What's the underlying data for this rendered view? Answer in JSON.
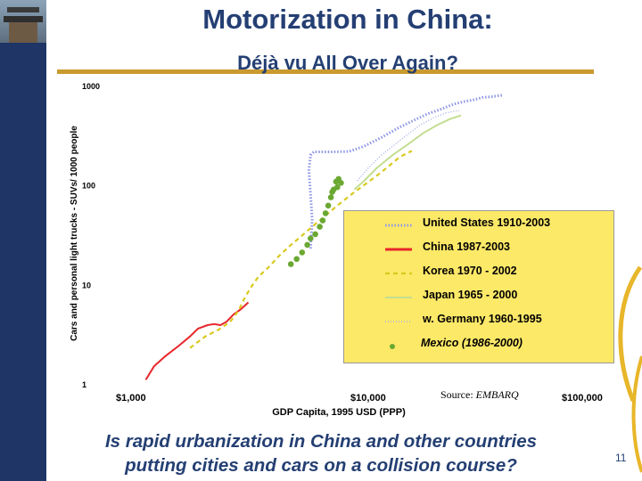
{
  "slide": {
    "title": "Motorization in China:",
    "subtitle": "Déjà vu All Over Again?",
    "question_line1": "Is rapid urbanization in China and other countries",
    "question_line2": "putting cities and cars on a collision course?",
    "page_number": "11",
    "source_label": "Source: ",
    "source_name": "EMBARQ"
  },
  "colors": {
    "sidebar": "#1e3566",
    "title": "#243f73",
    "rule": "#c99a2e",
    "legend_bg": "#fde968"
  },
  "chart_data": {
    "type": "line",
    "xlabel": "GDP Capita, 1995 USD (PPP)",
    "ylabel": "Cars and personal light trucks - SUVs/ 1000 people",
    "x_scale": "log",
    "y_scale": "log",
    "xlim": [
      1000,
      100000
    ],
    "ylim": [
      1,
      1000
    ],
    "x_ticks": [
      {
        "value": 1000,
        "label": "$1,000"
      },
      {
        "value": 10000,
        "label": "$10,000"
      },
      {
        "value": 100000,
        "label": "$100,000"
      }
    ],
    "y_ticks": [
      {
        "value": 1,
        "label": "1"
      },
      {
        "value": 10,
        "label": "10"
      },
      {
        "value": 100,
        "label": "100"
      },
      {
        "value": 1000,
        "label": "1000"
      }
    ],
    "legend_position": "lower-right",
    "series": [
      {
        "name": "United States 1910-2003",
        "color": "#8f96e6",
        "style": "dotted-thick",
        "points": [
          [
            6100,
            23
          ],
          [
            6200,
            45
          ],
          [
            6100,
            80
          ],
          [
            6000,
            140
          ],
          [
            6100,
            200
          ],
          [
            6300,
            215
          ],
          [
            7500,
            215
          ],
          [
            9000,
            217
          ],
          [
            10500,
            245
          ],
          [
            12500,
            300
          ],
          [
            15000,
            380
          ],
          [
            17500,
            450
          ],
          [
            20000,
            520
          ],
          [
            23000,
            580
          ],
          [
            26000,
            650
          ],
          [
            29000,
            690
          ],
          [
            32000,
            720
          ],
          [
            35000,
            760
          ],
          [
            38000,
            770
          ],
          [
            41000,
            790
          ],
          [
            43000,
            800
          ]
        ]
      },
      {
        "name": "China 1987-2003",
        "color": "#e8262a",
        "style": "solid",
        "points": [
          [
            1150,
            1.1
          ],
          [
            1250,
            1.5
          ],
          [
            1400,
            1.9
          ],
          [
            1600,
            2.4
          ],
          [
            1800,
            3.0
          ],
          [
            1950,
            3.6
          ],
          [
            2150,
            3.9
          ],
          [
            2300,
            4.0
          ],
          [
            2450,
            3.9
          ],
          [
            2600,
            4.2
          ],
          [
            2800,
            5.0
          ],
          [
            3000,
            5.6
          ],
          [
            3250,
            6.6
          ]
        ]
      },
      {
        "name": "Korea 1970 - 2002",
        "color": "#d9c91f",
        "style": "dashed",
        "points": [
          [
            1800,
            2.3
          ],
          [
            2100,
            3.0
          ],
          [
            2400,
            3.5
          ],
          [
            2700,
            4.2
          ],
          [
            2950,
            5.5
          ],
          [
            3100,
            7
          ],
          [
            3300,
            9
          ],
          [
            3600,
            12
          ],
          [
            4000,
            15
          ],
          [
            4400,
            19
          ],
          [
            4900,
            24
          ],
          [
            5500,
            30
          ],
          [
            6200,
            38
          ],
          [
            7000,
            48
          ],
          [
            8000,
            62
          ],
          [
            9200,
            80
          ],
          [
            10500,
            100
          ],
          [
            12000,
            125
          ],
          [
            13500,
            155
          ],
          [
            15000,
            190
          ],
          [
            17000,
            220
          ]
        ]
      },
      {
        "name": "Japan 1965 - 2000",
        "color": "#c3de91",
        "style": "solid",
        "points": [
          [
            9500,
            90
          ],
          [
            10500,
            110
          ],
          [
            12000,
            150
          ],
          [
            14000,
            200
          ],
          [
            16500,
            260
          ],
          [
            19000,
            330
          ],
          [
            22000,
            400
          ],
          [
            25000,
            460
          ],
          [
            28000,
            500
          ]
        ]
      },
      {
        "name": "w. Germany 1960-1995",
        "color": "#aab2e8",
        "style": "dotted",
        "points": [
          [
            9800,
            110
          ],
          [
            11000,
            150
          ],
          [
            12500,
            200
          ],
          [
            14500,
            260
          ],
          [
            16500,
            330
          ],
          [
            18500,
            400
          ],
          [
            21000,
            470
          ],
          [
            24000,
            530
          ],
          [
            27500,
            560
          ]
        ]
      },
      {
        "name": "Mexico (1986-2000)",
        "color": "#6aa832",
        "style": "markers",
        "points": [
          [
            5000,
            16
          ],
          [
            5300,
            18
          ],
          [
            5600,
            21
          ],
          [
            5900,
            25
          ],
          [
            6100,
            29
          ],
          [
            6400,
            32
          ],
          [
            6700,
            38
          ],
          [
            6900,
            44
          ],
          [
            7100,
            52
          ],
          [
            7300,
            62
          ],
          [
            7500,
            75
          ],
          [
            7700,
            90
          ],
          [
            7900,
            108
          ],
          [
            8100,
            115
          ],
          [
            8300,
            105
          ],
          [
            8000,
            95
          ],
          [
            7600,
            85
          ]
        ]
      }
    ]
  }
}
